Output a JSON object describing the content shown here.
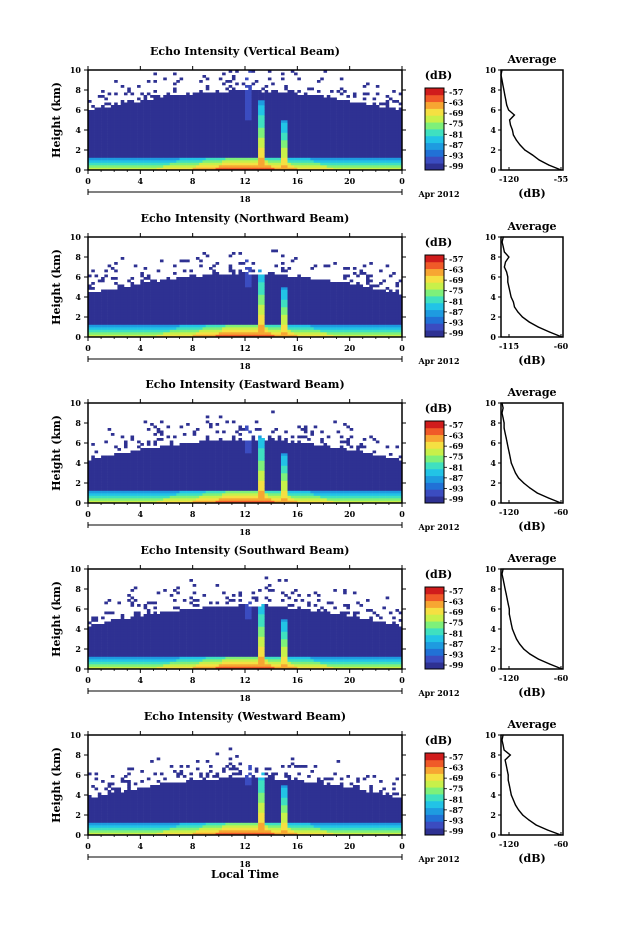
{
  "figure": {
    "xlabel": "Local Time",
    "date_label": "Apr 2012",
    "day_label": "18",
    "ylabel": "Height (km)",
    "colorbar_label": "(dB)",
    "avg_title": "Average",
    "avg_xlabel": "(dB)"
  },
  "chart_data": [
    {
      "type": "heatmap",
      "title": "Echo Intensity (Vertical Beam)",
      "xlabel": "Local Time",
      "ylabel": "Height (km)",
      "xlim": [
        0,
        24
      ],
      "ylim": [
        0,
        10
      ],
      "xticks": [
        "0",
        "4",
        "8",
        "12",
        "16",
        "20",
        "0"
      ],
      "yticks": [
        "0",
        "2",
        "4",
        "6",
        "8",
        "10"
      ],
      "colorbar": {
        "label": "(dB)",
        "ticks": [
          "-57",
          "-63",
          "-69",
          "-75",
          "-81",
          "-87",
          "-93",
          "-99"
        ]
      },
      "average": {
        "title": "Average",
        "xlabel": "(dB)",
        "xlim": [
          -120,
          -55
        ],
        "xticks": [
          "-120",
          "-55"
        ],
        "heights": [
          0,
          0.5,
          1,
          1.5,
          2,
          2.5,
          3,
          3.5,
          4,
          4.5,
          5,
          5.5,
          6,
          6.5,
          7,
          7.5,
          8,
          8.5,
          9,
          9.5,
          10
        ],
        "values": [
          -57,
          -70,
          -80,
          -87,
          -95,
          -100,
          -104,
          -107,
          -108,
          -110,
          -111,
          -106,
          -112,
          -114,
          -115,
          -116,
          -117,
          -118,
          -119,
          -120,
          -119
        ]
      }
    },
    {
      "type": "heatmap",
      "title": "Echo Intensity (Northward Beam)",
      "xlabel": "Local Time",
      "ylabel": "Height (km)",
      "xlim": [
        0,
        24
      ],
      "ylim": [
        0,
        10
      ],
      "xticks": [
        "0",
        "4",
        "8",
        "12",
        "16",
        "20",
        "0"
      ],
      "yticks": [
        "0",
        "2",
        "4",
        "6",
        "8",
        "10"
      ],
      "colorbar": {
        "label": "(dB)",
        "ticks": [
          "-57",
          "-63",
          "-69",
          "-75",
          "-81",
          "-87",
          "-93",
          "-99"
        ]
      },
      "average": {
        "title": "Average",
        "xlabel": "(dB)",
        "xlim": [
          -115,
          -60
        ],
        "xticks": [
          "-115",
          "-60"
        ],
        "heights": [
          0,
          0.5,
          1,
          1.5,
          2,
          2.5,
          3,
          3.5,
          4,
          4.5,
          5,
          5.5,
          6,
          6.5,
          7,
          7.5,
          8,
          8.5,
          9,
          9.5,
          10
        ],
        "values": [
          -61,
          -72,
          -82,
          -90,
          -96,
          -100,
          -103,
          -104,
          -106,
          -107,
          -108,
          -109,
          -109,
          -110,
          -112,
          -111,
          -108,
          -112,
          -113,
          -114,
          -113
        ]
      }
    },
    {
      "type": "heatmap",
      "title": "Echo Intensity (Eastward Beam)",
      "xlabel": "Local Time",
      "ylabel": "Height (km)",
      "xlim": [
        0,
        24
      ],
      "ylim": [
        0,
        10
      ],
      "xticks": [
        "0",
        "4",
        "8",
        "12",
        "16",
        "20",
        "0"
      ],
      "yticks": [
        "0",
        "2",
        "4",
        "6",
        "8",
        "10"
      ],
      "colorbar": {
        "label": "(dB)",
        "ticks": [
          "-57",
          "-63",
          "-69",
          "-75",
          "-81",
          "-87",
          "-93",
          "-99"
        ]
      },
      "average": {
        "title": "Average",
        "xlabel": "(dB)",
        "xlim": [
          -120,
          -60
        ],
        "xticks": [
          "-120",
          "-60"
        ],
        "heights": [
          0,
          0.5,
          1,
          1.5,
          2,
          2.5,
          3,
          3.5,
          4,
          4.5,
          5,
          5.5,
          6,
          6.5,
          7,
          7.5,
          8,
          8.5,
          9,
          9.5,
          10
        ],
        "values": [
          -62,
          -74,
          -85,
          -92,
          -98,
          -103,
          -106,
          -108,
          -110,
          -111,
          -112,
          -113,
          -114,
          -115,
          -116,
          -117,
          -117,
          -118,
          -119,
          -118,
          -119
        ]
      }
    },
    {
      "type": "heatmap",
      "title": "Echo Intensity (Southward Beam)",
      "xlabel": "Local Time",
      "ylabel": "Height (km)",
      "xlim": [
        0,
        24
      ],
      "ylim": [
        0,
        10
      ],
      "xticks": [
        "0",
        "4",
        "8",
        "12",
        "16",
        "20",
        "0"
      ],
      "yticks": [
        "0",
        "2",
        "4",
        "6",
        "8",
        "10"
      ],
      "colorbar": {
        "label": "(dB)",
        "ticks": [
          "-57",
          "-63",
          "-69",
          "-75",
          "-81",
          "-87",
          "-93",
          "-99"
        ]
      },
      "average": {
        "title": "Average",
        "xlabel": "(dB)",
        "xlim": [
          -120,
          -60
        ],
        "xticks": [
          "-120",
          "-60"
        ],
        "heights": [
          0,
          0.5,
          1,
          1.5,
          2,
          2.5,
          3,
          3.5,
          4,
          4.5,
          5,
          5.5,
          6,
          6.5,
          7,
          7.5,
          8,
          8.5,
          9,
          9.5,
          10
        ],
        "values": [
          -61,
          -73,
          -84,
          -92,
          -98,
          -102,
          -105,
          -107,
          -109,
          -110,
          -111,
          -112,
          -112,
          -113,
          -114,
          -115,
          -116,
          -117,
          -118,
          -119,
          -118
        ]
      }
    },
    {
      "type": "heatmap",
      "title": "Echo Intensity (Westward Beam)",
      "xlabel": "Local Time",
      "ylabel": "Height (km)",
      "xlim": [
        0,
        24
      ],
      "ylim": [
        0,
        10
      ],
      "xticks": [
        "0",
        "4",
        "8",
        "12",
        "16",
        "20",
        "0"
      ],
      "yticks": [
        "0",
        "2",
        "4",
        "6",
        "8",
        "10"
      ],
      "colorbar": {
        "label": "(dB)",
        "ticks": [
          "-57",
          "-63",
          "-69",
          "-75",
          "-81",
          "-87",
          "-93",
          "-99"
        ]
      },
      "average": {
        "title": "Average",
        "xlabel": "(dB)",
        "xlim": [
          -120,
          -60
        ],
        "xticks": [
          "-120",
          "-60"
        ],
        "heights": [
          0,
          0.5,
          1,
          1.5,
          2,
          2.5,
          3,
          3.5,
          4,
          4.5,
          5,
          5.5,
          6,
          6.5,
          7,
          7.5,
          8,
          8.5,
          9,
          9.5,
          10
        ],
        "values": [
          -62,
          -75,
          -86,
          -93,
          -99,
          -103,
          -106,
          -108,
          -110,
          -111,
          -112,
          -113,
          -113,
          -114,
          -115,
          -116,
          -111,
          -117,
          -118,
          -119,
          -118
        ]
      }
    }
  ]
}
